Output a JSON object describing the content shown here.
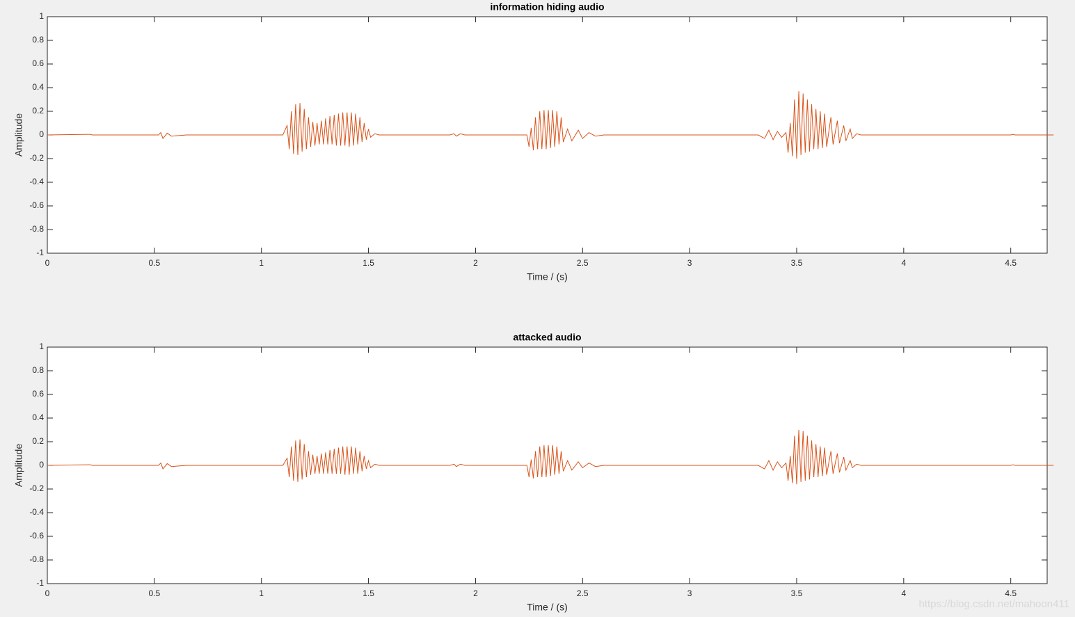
{
  "chart_data": [
    {
      "type": "line",
      "title": "information hiding audio",
      "xlabel": "Time / (s)",
      "ylabel": "Amplitude",
      "xlim": [
        0,
        4.67
      ],
      "ylim": [
        -1,
        1
      ],
      "xticks": [
        0,
        0.5,
        1,
        1.5,
        2,
        2.5,
        3,
        3.5,
        4,
        4.5
      ],
      "yticks": [
        -1,
        -0.8,
        -0.6,
        -0.4,
        -0.2,
        0,
        0.2,
        0.4,
        0.6,
        0.8,
        1
      ],
      "x": [
        0,
        0.2,
        0.21,
        0.52,
        0.53,
        0.54,
        0.56,
        0.58,
        0.65,
        1.1,
        1.12,
        1.13,
        1.14,
        1.15,
        1.16,
        1.17,
        1.18,
        1.19,
        1.2,
        1.21,
        1.22,
        1.23,
        1.24,
        1.25,
        1.26,
        1.27,
        1.28,
        1.29,
        1.3,
        1.31,
        1.32,
        1.33,
        1.34,
        1.35,
        1.36,
        1.37,
        1.38,
        1.39,
        1.4,
        1.41,
        1.42,
        1.43,
        1.44,
        1.45,
        1.46,
        1.47,
        1.48,
        1.49,
        1.5,
        1.51,
        1.53,
        1.55,
        1.88,
        1.9,
        1.91,
        1.93,
        1.95,
        2.24,
        2.25,
        2.26,
        2.27,
        2.28,
        2.29,
        2.3,
        2.31,
        2.32,
        2.33,
        2.34,
        2.35,
        2.36,
        2.37,
        2.38,
        2.39,
        2.4,
        2.41,
        2.43,
        2.45,
        2.48,
        2.5,
        2.53,
        2.56,
        2.6,
        3.32,
        3.35,
        3.37,
        3.39,
        3.41,
        3.43,
        3.45,
        3.46,
        3.47,
        3.48,
        3.49,
        3.5,
        3.51,
        3.52,
        3.53,
        3.54,
        3.55,
        3.56,
        3.57,
        3.58,
        3.59,
        3.6,
        3.61,
        3.62,
        3.63,
        3.64,
        3.66,
        3.67,
        3.69,
        3.7,
        3.72,
        3.73,
        3.75,
        3.76,
        3.78,
        3.8,
        4.5,
        4.51,
        4.52,
        4.7
      ],
      "series": [
        {
          "color": "#d95319",
          "values": [
            0,
            0.005,
            0,
            0,
            0.02,
            -0.03,
            0.015,
            -0.01,
            0,
            0,
            0.08,
            -0.12,
            0.2,
            -0.16,
            0.26,
            -0.17,
            0.27,
            -0.14,
            0.22,
            -0.12,
            0.15,
            -0.1,
            0.11,
            -0.09,
            0.1,
            -0.08,
            0.12,
            -0.08,
            0.14,
            -0.08,
            0.16,
            -0.08,
            0.17,
            -0.09,
            0.18,
            -0.09,
            0.19,
            -0.09,
            0.19,
            -0.1,
            0.19,
            -0.09,
            0.18,
            -0.08,
            0.15,
            -0.06,
            0.1,
            -0.04,
            0.05,
            -0.02,
            0.01,
            0,
            0,
            0.01,
            -0.01,
            0.01,
            0,
            0,
            -0.1,
            0.06,
            -0.13,
            0.15,
            -0.12,
            0.2,
            -0.12,
            0.21,
            -0.12,
            0.21,
            -0.11,
            0.21,
            -0.1,
            0.2,
            -0.08,
            0.15,
            -0.06,
            0.05,
            -0.05,
            0.04,
            -0.03,
            0.02,
            -0.01,
            0,
            0,
            -0.03,
            0.04,
            -0.04,
            0.03,
            -0.02,
            0.02,
            -0.15,
            0.1,
            -0.18,
            0.3,
            -0.2,
            0.37,
            -0.17,
            0.35,
            -0.15,
            0.3,
            -0.14,
            0.26,
            -0.12,
            0.22,
            -0.12,
            0.2,
            -0.11,
            0.18,
            -0.1,
            0.15,
            -0.08,
            0.12,
            -0.07,
            0.08,
            -0.05,
            0.05,
            -0.03,
            0.01,
            0,
            0,
            0.005,
            0,
            0
          ]
        }
      ]
    },
    {
      "type": "line",
      "title": "attacked audio",
      "xlabel": "Time / (s)",
      "ylabel": "Amplitude",
      "xlim": [
        0,
        4.67
      ],
      "ylim": [
        -1,
        1
      ],
      "xticks": [
        0,
        0.5,
        1,
        1.5,
        2,
        2.5,
        3,
        3.5,
        4,
        4.5
      ],
      "yticks": [
        -1,
        -0.8,
        -0.6,
        -0.4,
        -0.2,
        0,
        0.2,
        0.4,
        0.6,
        0.8,
        1
      ],
      "x": [
        0,
        0.2,
        0.21,
        0.52,
        0.53,
        0.54,
        0.56,
        0.58,
        0.65,
        1.1,
        1.12,
        1.13,
        1.14,
        1.15,
        1.16,
        1.17,
        1.18,
        1.19,
        1.2,
        1.21,
        1.22,
        1.23,
        1.24,
        1.25,
        1.26,
        1.27,
        1.28,
        1.29,
        1.3,
        1.31,
        1.32,
        1.33,
        1.34,
        1.35,
        1.36,
        1.37,
        1.38,
        1.39,
        1.4,
        1.41,
        1.42,
        1.43,
        1.44,
        1.45,
        1.46,
        1.47,
        1.48,
        1.49,
        1.5,
        1.51,
        1.53,
        1.55,
        1.88,
        1.9,
        1.91,
        1.93,
        1.95,
        2.24,
        2.25,
        2.26,
        2.27,
        2.28,
        2.29,
        2.3,
        2.31,
        2.32,
        2.33,
        2.34,
        2.35,
        2.36,
        2.37,
        2.38,
        2.39,
        2.4,
        2.41,
        2.43,
        2.45,
        2.48,
        2.5,
        2.53,
        2.56,
        2.6,
        3.32,
        3.35,
        3.37,
        3.39,
        3.41,
        3.43,
        3.45,
        3.46,
        3.47,
        3.48,
        3.49,
        3.5,
        3.51,
        3.52,
        3.53,
        3.54,
        3.55,
        3.56,
        3.57,
        3.58,
        3.59,
        3.6,
        3.61,
        3.62,
        3.63,
        3.64,
        3.66,
        3.67,
        3.69,
        3.7,
        3.72,
        3.73,
        3.75,
        3.76,
        3.78,
        3.8,
        4.5,
        4.51,
        4.52,
        4.7
      ],
      "series": [
        {
          "color": "#d95319",
          "values": [
            0,
            0.005,
            0,
            0,
            0.02,
            -0.03,
            0.015,
            -0.01,
            0,
            0,
            0.06,
            -0.1,
            0.16,
            -0.13,
            0.21,
            -0.14,
            0.22,
            -0.12,
            0.18,
            -0.1,
            0.12,
            -0.08,
            0.09,
            -0.07,
            0.08,
            -0.07,
            0.1,
            -0.07,
            0.11,
            -0.07,
            0.13,
            -0.07,
            0.14,
            -0.07,
            0.15,
            -0.07,
            0.16,
            -0.08,
            0.16,
            -0.08,
            0.16,
            -0.07,
            0.15,
            -0.07,
            0.12,
            -0.05,
            0.08,
            -0.03,
            0.04,
            -0.02,
            0.01,
            0,
            0,
            0.01,
            -0.01,
            0.01,
            0,
            0,
            -0.1,
            0.05,
            -0.11,
            0.12,
            -0.1,
            0.16,
            -0.1,
            0.17,
            -0.1,
            0.17,
            -0.09,
            0.17,
            -0.08,
            0.16,
            -0.07,
            0.12,
            -0.05,
            0.04,
            -0.04,
            0.03,
            -0.02,
            0.02,
            -0.01,
            0,
            0,
            -0.03,
            0.04,
            -0.04,
            0.03,
            -0.02,
            0.02,
            -0.13,
            0.08,
            -0.15,
            0.25,
            -0.16,
            0.3,
            -0.14,
            0.29,
            -0.13,
            0.25,
            -0.12,
            0.21,
            -0.1,
            0.18,
            -0.1,
            0.16,
            -0.09,
            0.15,
            -0.08,
            0.12,
            -0.07,
            0.1,
            -0.06,
            0.07,
            -0.04,
            0.04,
            -0.02,
            0.01,
            0,
            0,
            0.005,
            0,
            0
          ]
        }
      ]
    }
  ],
  "watermark": "https://blog.csdn.net/mahoon411"
}
